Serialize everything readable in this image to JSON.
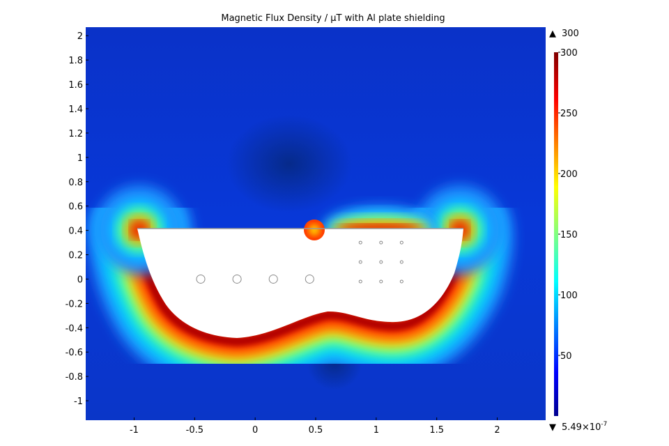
{
  "chart_data": {
    "type": "heatmap",
    "title": "Magnetic Flux Density / µT with Al plate shielding",
    "xlabel": "",
    "ylabel": "",
    "xlim": [
      -1.4,
      2.4
    ],
    "ylim": [
      -1.16,
      2.07
    ],
    "x_ticks": [
      -1,
      -0.5,
      0,
      0.5,
      1,
      1.5,
      2
    ],
    "x_tick_labels": [
      "-1",
      "-0.5",
      "0",
      "0.5",
      "1",
      "1.5",
      "2"
    ],
    "y_ticks": [
      -1,
      -0.8,
      -0.6,
      -0.4,
      -0.2,
      0,
      0.2,
      0.4,
      0.6,
      0.8,
      1,
      1.2,
      1.4,
      1.6,
      1.8,
      2
    ],
    "y_tick_labels": [
      "-1",
      "-0.8",
      "-0.6",
      "-0.4",
      "-0.2",
      "0",
      "0.2",
      "0.4",
      "0.6",
      "0.8",
      "1",
      "1.2",
      "1.4",
      "1.6",
      "1.8",
      "2"
    ],
    "colorbar": {
      "colormap": "jet",
      "range": [
        0,
        300
      ],
      "ticks": [
        50,
        100,
        150,
        200,
        250,
        300
      ],
      "tick_labels": [
        "50",
        "100",
        "150",
        "200",
        "250",
        "300"
      ],
      "max_label": "300",
      "min_label_mantissa": "5.49×10",
      "min_label_exponent": "-7",
      "max_marker": "▲",
      "min_marker": "▼"
    },
    "conductors_large": [
      [
        -0.45,
        0
      ],
      [
        -0.15,
        0
      ],
      [
        0.15,
        0
      ],
      [
        0.45,
        0
      ]
    ],
    "conductors_small": [
      [
        0.87,
        0.3
      ],
      [
        1.04,
        0.3
      ],
      [
        1.21,
        0.3
      ],
      [
        0.87,
        0.14
      ],
      [
        1.04,
        0.14
      ],
      [
        1.21,
        0.14
      ],
      [
        0.87,
        -0.02
      ],
      [
        1.04,
        -0.02
      ],
      [
        1.21,
        -0.02
      ]
    ]
  }
}
